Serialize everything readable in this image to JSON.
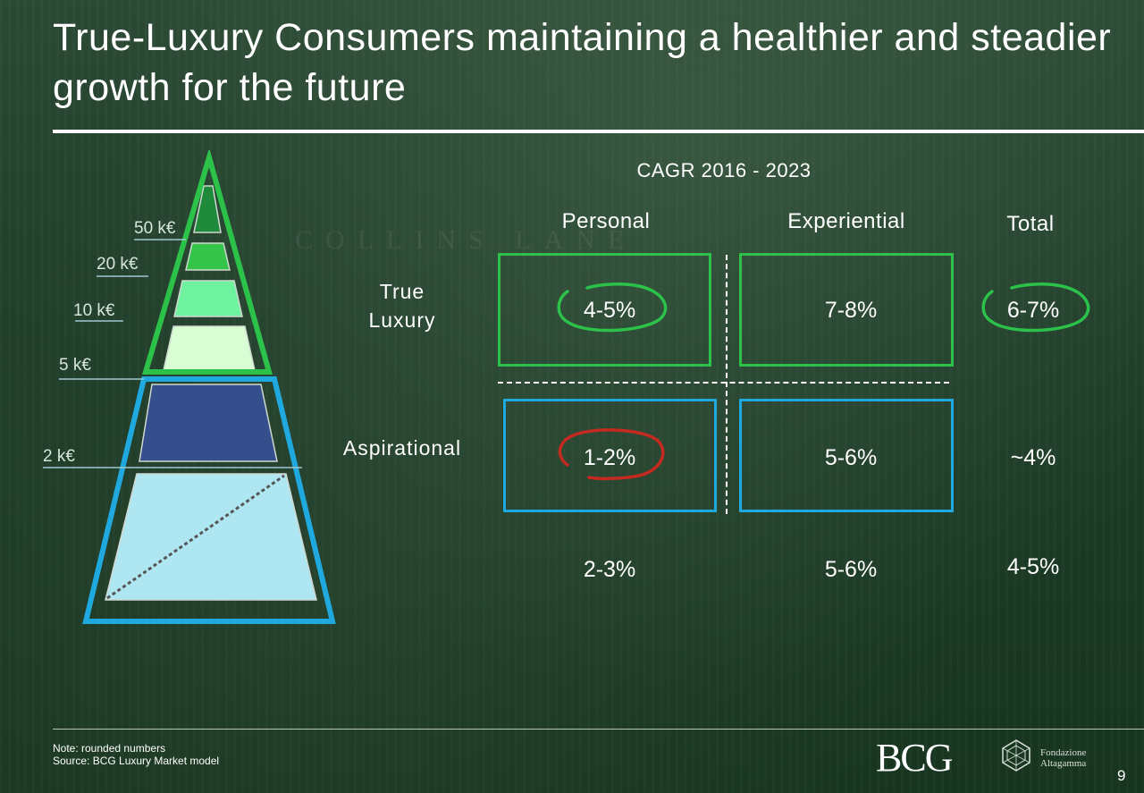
{
  "slide": {
    "title": "True-Luxury Consumers maintaining a healthier and steadier growth for the future",
    "background_lettering": "COLLINS LANE",
    "page_number": "9"
  },
  "pyramid": {
    "tiers": [
      "50 k€",
      "20 k€",
      "10 k€",
      "5 k€",
      "2 k€"
    ],
    "colors": {
      "true_luxury_outline": "#2cc24a",
      "aspirational_outline": "#1fa9df",
      "tier_50k": "#1f8a3a",
      "tier_20k": "#35c44a",
      "tier_10k": "#6ff2a0",
      "tier_5k": "#d8ffd4",
      "tier_2k": "#344f8c",
      "base": "#aee7f2"
    }
  },
  "table": {
    "caption": "CAGR 2016 - 2023",
    "columns": [
      "Personal",
      "Experiential",
      "Total"
    ],
    "rows": [
      {
        "label": "True Luxury",
        "values": [
          "4-5%",
          "7-8%",
          "6-7%"
        ]
      },
      {
        "label": "Aspirational",
        "values": [
          "1-2%",
          "5-6%",
          "~4%"
        ]
      },
      {
        "label": "",
        "values": [
          "2-3%",
          "5-6%",
          "4-5%"
        ]
      }
    ],
    "highlight_colors": {
      "green": "#2cc24a",
      "red": "#c42a1f"
    }
  },
  "footer": {
    "note": "Note: rounded numbers",
    "source": "Source: BCG Luxury Market model",
    "bcg_logo": "BCG",
    "altagamma_logo": [
      "Fondazione",
      "Altagamma"
    ]
  }
}
